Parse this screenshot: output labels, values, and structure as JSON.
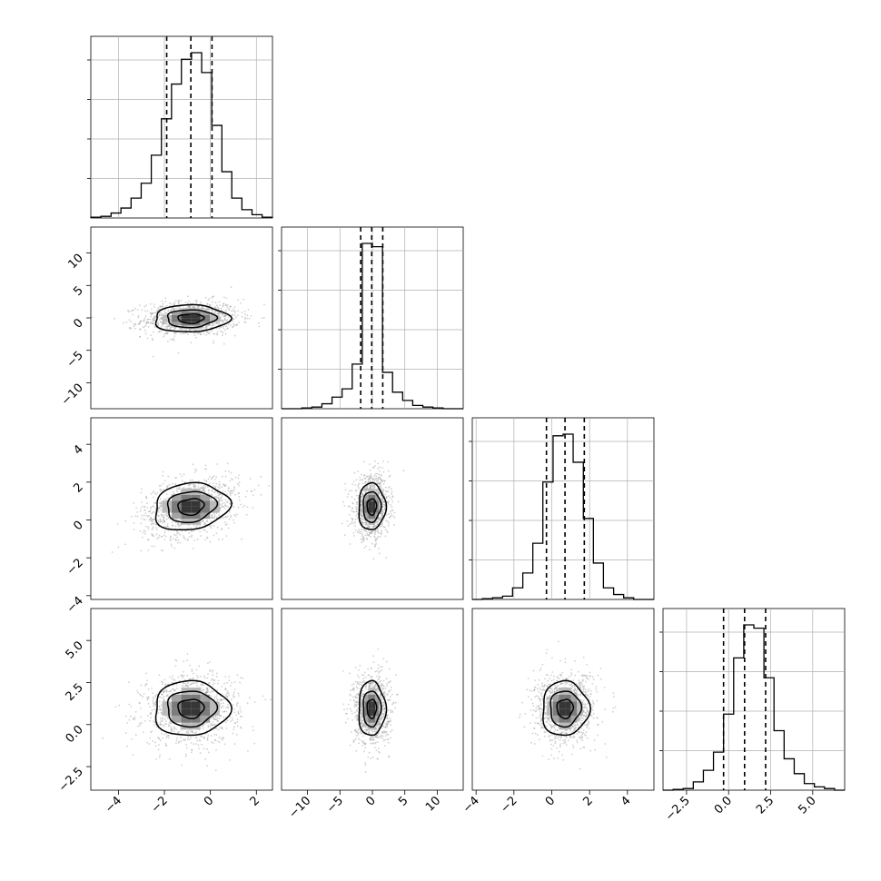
{
  "chart_data": {
    "type": "corner",
    "params": [
      {
        "range": [
          -5.2,
          2.7
        ],
        "ticks": [
          -4,
          -2,
          0,
          2
        ],
        "tick_labels": [
          "−4",
          "−2",
          "0",
          "2"
        ]
      },
      {
        "range": [
          -14,
          14
        ],
        "ticks": [
          -10,
          -5,
          0,
          5,
          10
        ],
        "tick_labels": [
          "−10",
          "−5",
          "0",
          "5",
          "10"
        ]
      },
      {
        "range": [
          -4.2,
          5.4
        ],
        "ticks": [
          -4,
          -2,
          0,
          2,
          4
        ],
        "tick_labels": [
          "−4",
          "−2",
          "0",
          "2",
          "4"
        ]
      },
      {
        "range": [
          -3.9,
          6.9
        ],
        "ticks": [
          -2.5,
          0.0,
          2.5,
          5.0
        ],
        "tick_labels": [
          "−2.5",
          "0.0",
          "2.5",
          "5.0"
        ]
      }
    ],
    "marginals": [
      {
        "bins": [
          -5.2,
          -4.76,
          -4.32,
          -3.89,
          -3.45,
          -3.01,
          -2.57,
          -2.13,
          -1.69,
          -1.26,
          -0.82,
          -0.38,
          0.06,
          0.5,
          0.93,
          1.37,
          1.81,
          2.25,
          2.69
        ],
        "counts": [
          0.005,
          0.01,
          0.03,
          0.06,
          0.12,
          0.21,
          0.38,
          0.6,
          0.81,
          0.96,
          1.0,
          0.88,
          0.56,
          0.28,
          0.12,
          0.05,
          0.02,
          0.005
        ],
        "quantiles": [
          -1.9,
          -0.85,
          0.07
        ]
      },
      {
        "bins": [
          -14,
          -12.44,
          -10.89,
          -9.33,
          -7.78,
          -6.22,
          -4.67,
          -3.11,
          -1.56,
          0,
          1.56,
          3.11,
          4.67,
          6.22,
          7.78,
          9.33,
          10.89,
          12.44,
          14
        ],
        "counts": [
          0,
          0,
          0.005,
          0.01,
          0.03,
          0.07,
          0.12,
          0.27,
          1.0,
          0.98,
          0.22,
          0.1,
          0.05,
          0.02,
          0.01,
          0.005,
          0,
          0
        ],
        "quantiles": [
          -1.8,
          -0.1,
          1.6
        ]
      },
      {
        "bins": [
          -4.2,
          -3.67,
          -3.13,
          -2.6,
          -2.07,
          -1.53,
          -1.0,
          -0.47,
          0.07,
          0.6,
          1.13,
          1.67,
          2.2,
          2.73,
          3.27,
          3.8,
          4.33,
          4.87,
          5.4
        ],
        "counts": [
          0,
          0.005,
          0.01,
          0.02,
          0.07,
          0.16,
          0.34,
          0.71,
          0.99,
          1.0,
          0.83,
          0.49,
          0.22,
          0.07,
          0.03,
          0.01,
          0,
          0
        ],
        "quantiles": [
          -0.28,
          0.7,
          1.72
        ]
      },
      {
        "bins": [
          -3.9,
          -3.3,
          -2.7,
          -2.1,
          -1.5,
          -0.9,
          -0.3,
          0.3,
          0.9,
          1.5,
          2.1,
          2.7,
          3.3,
          3.9,
          4.5,
          5.1,
          5.7,
          6.3,
          6.9
        ],
        "counts": [
          0,
          0.005,
          0.01,
          0.05,
          0.12,
          0.23,
          0.46,
          0.8,
          1.0,
          0.98,
          0.68,
          0.36,
          0.19,
          0.1,
          0.04,
          0.02,
          0.01,
          0
        ],
        "quantiles": [
          -0.3,
          0.95,
          2.2
        ]
      }
    ],
    "joints": [
      {
        "row": 1,
        "col": 0,
        "center": [
          -0.85,
          -0.1
        ],
        "radii": [
          1.25,
          1.6
        ],
        "corr": 0.08
      },
      {
        "row": 2,
        "col": 0,
        "center": [
          -0.85,
          0.7
        ],
        "radii": [
          1.25,
          0.95
        ],
        "corr": 0.3
      },
      {
        "row": 2,
        "col": 1,
        "center": [
          -0.1,
          0.7
        ],
        "radii": [
          1.6,
          0.95
        ],
        "corr": 0.05
      },
      {
        "row": 3,
        "col": 0,
        "center": [
          -0.85,
          0.95
        ],
        "radii": [
          1.25,
          1.25
        ],
        "corr": 0.05
      },
      {
        "row": 3,
        "col": 1,
        "center": [
          -0.1,
          0.95
        ],
        "radii": [
          1.6,
          1.25
        ],
        "corr": 0.02
      },
      {
        "row": 3,
        "col": 2,
        "center": [
          0.7,
          0.95
        ],
        "radii": [
          0.95,
          1.25
        ],
        "corr": 0.05
      }
    ],
    "contour_levels": [
      0.5,
      1.0,
      1.5,
      2.0
    ],
    "grid": true,
    "colors": {
      "line": "#000000",
      "grid": "#b0b0b0",
      "scatter": "#9a9a9a"
    }
  }
}
